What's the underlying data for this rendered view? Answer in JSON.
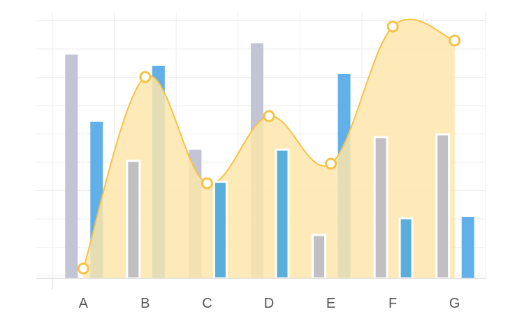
{
  "chart_data": {
    "type": "bar",
    "categories": [
      "A",
      "B",
      "C",
      "D",
      "E",
      "F",
      "G"
    ],
    "ylim": [
      0,
      9.5
    ],
    "grid": true,
    "series": [
      {
        "type": "bar",
        "color": "#c3c4d6",
        "values": [
          8.0,
          null,
          4.6,
          8.4,
          null,
          null,
          null
        ]
      },
      {
        "type": "bar",
        "color": "#62b0ea",
        "values": [
          5.6,
          7.6,
          null,
          null,
          7.3,
          null,
          2.2
        ]
      },
      {
        "type": "area",
        "color": "#f7c244",
        "fill": "#fde6ab",
        "values": [
          0.35,
          7.2,
          3.4,
          5.8,
          4.1,
          9.0,
          8.5
        ]
      },
      {
        "type": "bar",
        "color": "#c2bfc3",
        "outline": "#ffffff",
        "values": [
          null,
          4.2,
          null,
          null,
          1.55,
          5.05,
          5.15
        ]
      },
      {
        "type": "bar",
        "color": "#5aaedb",
        "outline": "#ffffff",
        "values": [
          null,
          null,
          3.45,
          4.6,
          null,
          2.15,
          null
        ]
      }
    ]
  }
}
